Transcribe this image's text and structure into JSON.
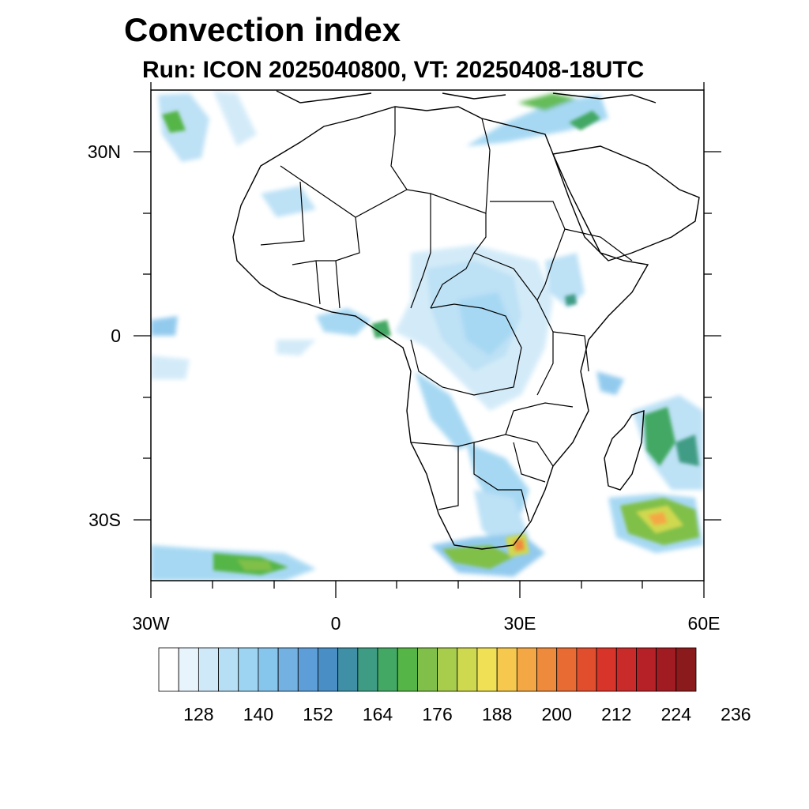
{
  "title": "Convection index",
  "subtitle": "Run: ICON 2025040800,  VT: 20250408-18UTC",
  "axes": {
    "x_ticks": [
      "30W",
      "0",
      "30E",
      "60E"
    ],
    "y_ticks": [
      "30N",
      "0",
      "30S"
    ]
  },
  "colorbar": {
    "labels": [
      "128",
      "140",
      "152",
      "164",
      "176",
      "188",
      "200",
      "212",
      "224",
      "236"
    ],
    "colors": [
      "#ffffff",
      "#e8f4fc",
      "#cfe9f8",
      "#b6def5",
      "#9dd4f2",
      "#86c5ec",
      "#72b1e2",
      "#5d9ed8",
      "#4a8ec6",
      "#3f8fa6",
      "#3f9c84",
      "#42a864",
      "#55b546",
      "#80c04a",
      "#a8cc4c",
      "#cfd94f",
      "#f0e055",
      "#f6c84e",
      "#f4a845",
      "#ee8a3c",
      "#e86b33",
      "#e14e2d",
      "#d93429",
      "#c92a2a",
      "#b52126",
      "#a11b22",
      "#8b1a1c"
    ]
  },
  "map_features": [
    "convection-field",
    "country-borders",
    "coastlines"
  ]
}
